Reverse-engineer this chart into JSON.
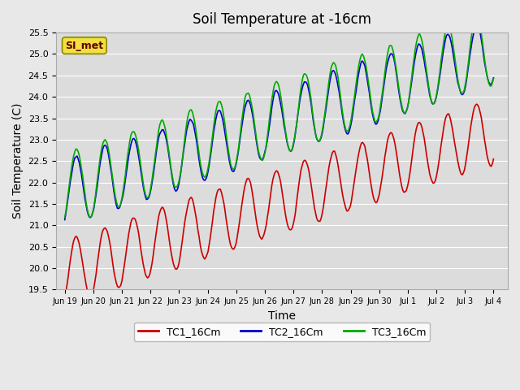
{
  "title": "Soil Temperature at -16cm",
  "xlabel": "Time",
  "ylabel": "Soil Temperature (C)",
  "ylim": [
    19.5,
    25.5
  ],
  "yticks": [
    19.5,
    20.0,
    20.5,
    21.0,
    21.5,
    22.0,
    22.5,
    23.0,
    23.5,
    24.0,
    24.5,
    25.0,
    25.5
  ],
  "fig_bg_color": "#e8e8e8",
  "plot_bg_color": "#dcdcdc",
  "si_met_label": "SI_met",
  "si_met_fg": "#660000",
  "si_met_bg": "#f0e040",
  "si_met_edge": "#888800",
  "series_colors": [
    "#cc0000",
    "#0000cc",
    "#00aa00"
  ],
  "series_names": [
    "TC1_16Cm",
    "TC2_16Cm",
    "TC3_16Cm"
  ],
  "xtick_labels": [
    "Jun 19",
    "Jun 20",
    "Jun 21",
    "Jun 22",
    "Jun 23",
    "Jun 24",
    "Jun 25",
    "Jun 26",
    "Jun 27",
    "Jun 28",
    "Jun 29",
    "Jun 30",
    "Jul 1",
    "Jul 2",
    "Jul 3",
    "Jul 4"
  ],
  "n_days": 16,
  "seed": 42
}
